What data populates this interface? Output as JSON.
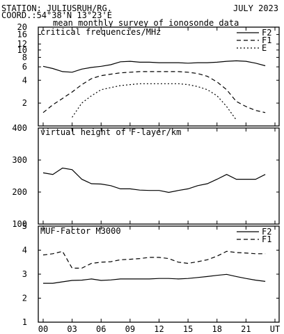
{
  "header": {
    "station": "STATION: JULIUSRUH/RG.",
    "date": "JULY 2023",
    "coords": "COORD.:54°38'N 13°23'E",
    "subtitle": "mean monthly survey of ionosonde data"
  },
  "x_ticks": [
    "00",
    "03",
    "06",
    "09",
    "12",
    "15",
    "18",
    "21",
    "UT"
  ],
  "chart_data": [
    {
      "type": "line",
      "title": "critical frequencies/MHz",
      "y_scale": "log",
      "ylim": [
        1,
        20
      ],
      "y_ticks": [
        "20",
        "16",
        "12",
        "10",
        "8",
        "6",
        "4",
        "2"
      ],
      "x": [
        0,
        1,
        2,
        3,
        4,
        5,
        6,
        7,
        8,
        9,
        10,
        11,
        12,
        13,
        14,
        15,
        16,
        17,
        18,
        19,
        20,
        21,
        22,
        23
      ],
      "series": [
        {
          "name": "F2",
          "values": [
            6.1,
            5.7,
            5.2,
            5.1,
            5.6,
            5.9,
            6.1,
            6.4,
            7.0,
            7.1,
            6.9,
            6.9,
            6.8,
            6.8,
            6.8,
            6.7,
            6.8,
            6.8,
            6.9,
            7.1,
            7.2,
            7.1,
            6.7,
            6.2
          ]
        },
        {
          "name": "F1",
          "values": [
            1.5,
            1.9,
            2.3,
            2.8,
            3.5,
            4.2,
            4.6,
            4.8,
            5.0,
            5.1,
            5.2,
            5.2,
            5.2,
            5.2,
            5.2,
            5.1,
            4.9,
            4.5,
            3.8,
            3.0,
            2.1,
            1.8,
            1.6,
            1.5
          ]
        },
        {
          "name": "E",
          "values": [
            null,
            null,
            null,
            1.3,
            2.0,
            2.5,
            3.0,
            3.2,
            3.4,
            3.5,
            3.6,
            3.6,
            3.6,
            3.6,
            3.6,
            3.5,
            3.3,
            3.0,
            2.5,
            1.8,
            1.2,
            null,
            null,
            null
          ]
        }
      ],
      "legend": "top-right",
      "line_styles": {
        "F2": "solid",
        "F1": "dashed",
        "E": "dotted"
      }
    },
    {
      "type": "line",
      "title": "virtual height of F-layer/km",
      "ylim": [
        100,
        400
      ],
      "y_ticks": [
        "400",
        "300",
        "200",
        "100"
      ],
      "x": [
        0,
        1,
        2,
        3,
        4,
        5,
        6,
        7,
        8,
        9,
        10,
        11,
        12,
        13,
        14,
        15,
        16,
        17,
        18,
        19,
        20,
        21,
        22,
        23
      ],
      "series": [
        {
          "values": [
            260,
            255,
            275,
            270,
            240,
            226,
            225,
            220,
            210,
            210,
            206,
            205,
            205,
            199,
            205,
            210,
            220,
            226,
            240,
            255,
            240,
            240,
            240,
            255
          ]
        }
      ]
    },
    {
      "type": "line",
      "title": "MUF-Factor M3000",
      "ylim": [
        1,
        5
      ],
      "y_ticks": [
        "5",
        "4",
        "3",
        "2",
        "1"
      ],
      "x": [
        0,
        1,
        2,
        3,
        4,
        5,
        6,
        7,
        8,
        9,
        10,
        11,
        12,
        13,
        14,
        15,
        16,
        17,
        18,
        19,
        20,
        21,
        22,
        23
      ],
      "series": [
        {
          "name": "F2",
          "values": [
            2.62,
            2.62,
            2.68,
            2.74,
            2.75,
            2.8,
            2.74,
            2.76,
            2.8,
            2.8,
            2.8,
            2.8,
            2.82,
            2.82,
            2.8,
            2.82,
            2.86,
            2.9,
            2.95,
            2.99,
            2.9,
            2.82,
            2.75,
            2.7
          ]
        },
        {
          "name": "F1",
          "values": [
            3.8,
            3.85,
            3.95,
            3.25,
            3.25,
            3.45,
            3.5,
            3.52,
            3.6,
            3.62,
            3.65,
            3.7,
            3.7,
            3.65,
            3.5,
            3.45,
            3.52,
            3.6,
            3.75,
            3.95,
            3.9,
            3.88,
            3.85,
            3.85
          ]
        }
      ],
      "legend": "top-right",
      "line_styles": {
        "F2": "solid",
        "F1": "dashed"
      }
    }
  ]
}
